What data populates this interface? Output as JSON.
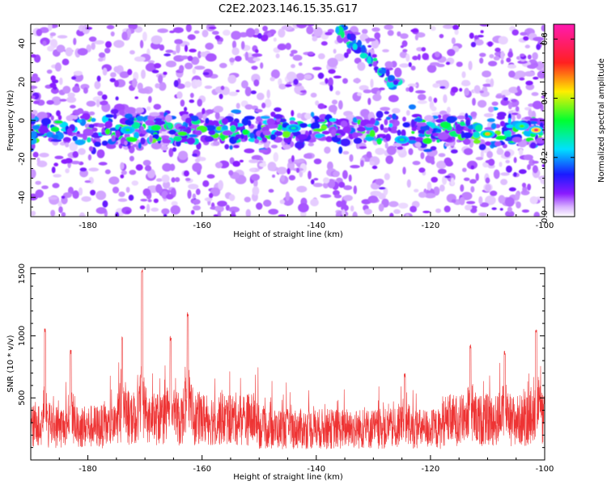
{
  "figure": {
    "title": "C2E2.2023.146.15.35.G17"
  },
  "chart_data": [
    {
      "type": "heatmap",
      "title": "C2E2.2023.146.15.35.G17",
      "xlabel": "Height of straight line (km)",
      "ylabel": "Frequency (Hz)",
      "xlim": [
        -190,
        -100
      ],
      "ylim": [
        -50,
        50
      ],
      "xticks": [
        -180,
        -160,
        -140,
        -120,
        -100
      ],
      "yticks": [
        -40,
        -20,
        0,
        20,
        40
      ],
      "colorbar": {
        "label": "Normalized spectral amplitude",
        "range": [
          0.0,
          0.65
        ],
        "ticks": [
          0.0,
          0.2,
          0.4,
          0.6
        ],
        "colormap": "rainbow (white-violet-blue-cyan-green-yellow-red-magenta)"
      },
      "features": [
        {
          "name": "main band",
          "x_range": [
            -190,
            -100
          ],
          "frequency_center": -5,
          "peak_amplitude": 0.6,
          "peak_x": -101.5
        },
        {
          "name": "diagonal streak",
          "x_start": -136,
          "y_start": 48,
          "x_end": -126,
          "y_end": 18,
          "amplitude": 0.3
        }
      ]
    },
    {
      "type": "line",
      "xlabel": "Height of straight line (km)",
      "ylabel": "SNR (10 * v/v)",
      "xlim": [
        -190,
        -100
      ],
      "ylim": [
        0,
        1550
      ],
      "xticks": [
        -180,
        -160,
        -140,
        -120,
        -100
      ],
      "yticks": [
        500,
        1000,
        1500
      ],
      "color": "#ee3333",
      "peaks": [
        {
          "x": -187.5,
          "y": 1070
        },
        {
          "x": -183,
          "y": 890
        },
        {
          "x": -174,
          "y": 1000
        },
        {
          "x": -170.5,
          "y": 1550
        },
        {
          "x": -165.5,
          "y": 1000
        },
        {
          "x": -162.5,
          "y": 1190
        },
        {
          "x": -124.5,
          "y": 700
        },
        {
          "x": -113,
          "y": 930
        },
        {
          "x": -107,
          "y": 880
        },
        {
          "x": -101.5,
          "y": 1050
        }
      ],
      "baseline_typical": 280
    }
  ]
}
